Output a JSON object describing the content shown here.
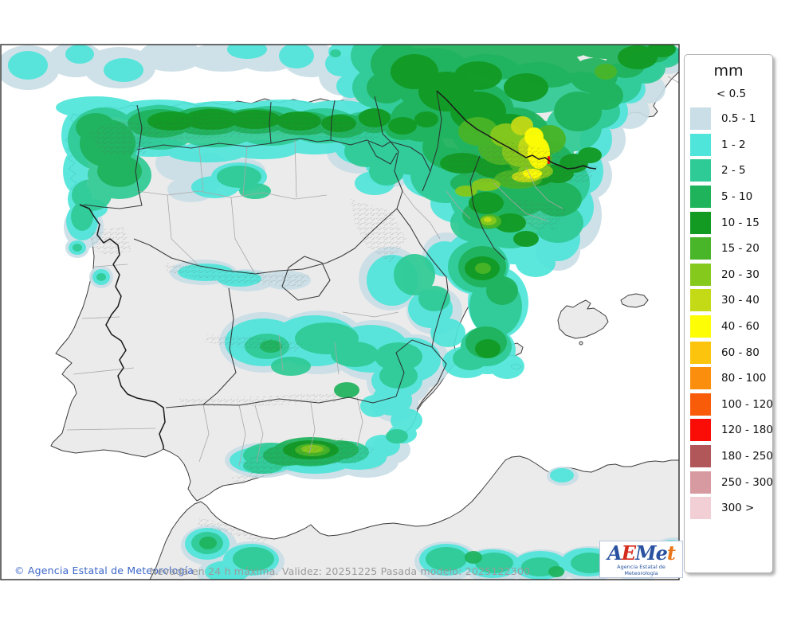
{
  "legend": {
    "title": "mm",
    "no_swatch_label": "< 0.5",
    "entries": [
      {
        "range": "0.5 - 1",
        "color": "#c9dee6"
      },
      {
        "range": "1 - 2",
        "color": "#4fe5da"
      },
      {
        "range": "2 - 5",
        "color": "#2fcb96"
      },
      {
        "range": "5 - 10",
        "color": "#1fb35c"
      },
      {
        "range": "10 - 15",
        "color": "#129a23"
      },
      {
        "range": "15 - 20",
        "color": "#49b528"
      },
      {
        "range": "20 - 30",
        "color": "#86c91d"
      },
      {
        "range": "30 - 40",
        "color": "#c4da16"
      },
      {
        "range": "40 - 60",
        "color": "#fdfd05"
      },
      {
        "range": "60 - 80",
        "color": "#fcc40d"
      },
      {
        "range": "80 - 100",
        "color": "#fb8e0d"
      },
      {
        "range": "100 - 120",
        "color": "#f95c08"
      },
      {
        "range": "120 - 180",
        "color": "#f90d06"
      },
      {
        "range": "180 - 250",
        "color": "#b15659"
      },
      {
        "range": "250 - 300",
        "color": "#d79aa1"
      },
      {
        "range": "300 >",
        "color": "#f2ced5"
      }
    ]
  },
  "footer": {
    "copyright": "© Agencia Estatal de Meteorología",
    "caption": "Nevada en 24 h máxima. Validez: 20251225 Pasada modelo: 2025122300"
  },
  "logo": {
    "letters": [
      {
        "char": "A",
        "color": "#2a52a0"
      },
      {
        "char": "E",
        "color": "#d42b1e"
      },
      {
        "char": "M",
        "color": "#2a52a0"
      },
      {
        "char": "e",
        "color": "#2a52a0"
      },
      {
        "char": "t",
        "color": "#e8761a"
      }
    ],
    "subtitle": "Agencia Estatal de Meteorología"
  }
}
